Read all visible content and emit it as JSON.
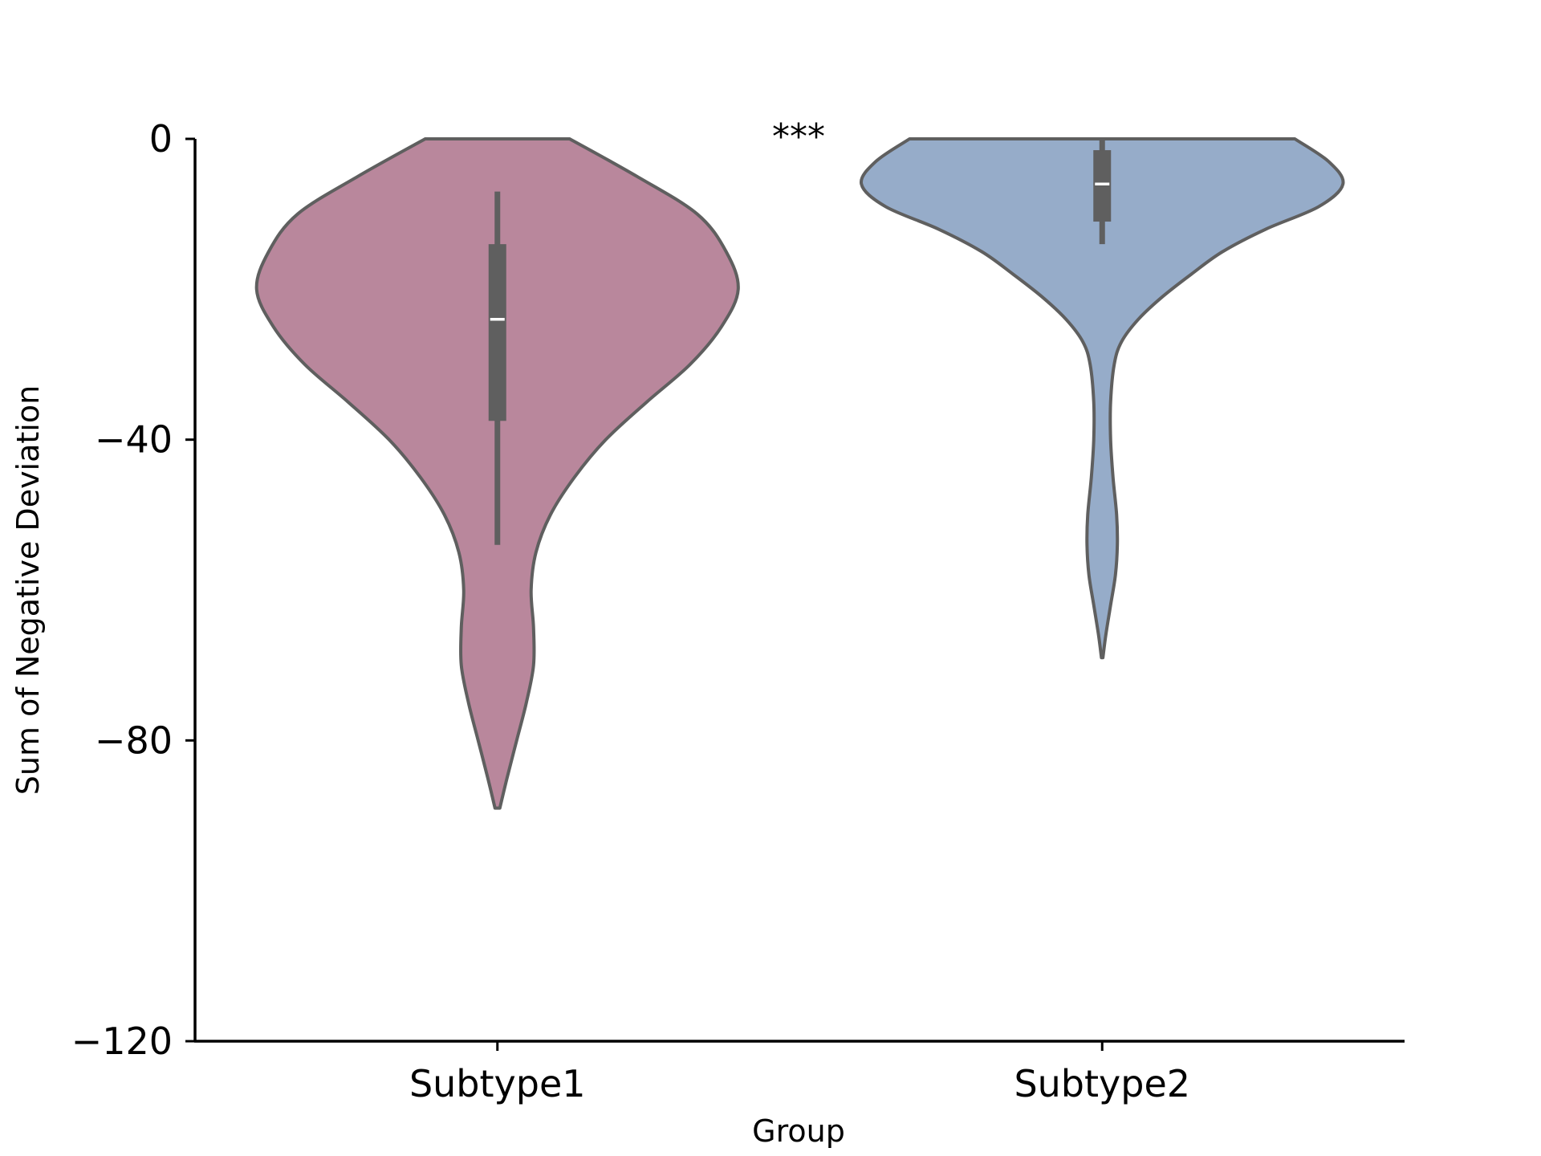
{
  "chart_data": {
    "type": "violin",
    "title": "",
    "xlabel": "Group",
    "ylabel": "Sum of Negative Deviation",
    "ylim": [
      -120,
      0
    ],
    "yticks": [
      0,
      -40,
      -80,
      -120
    ],
    "ytick_labels": [
      "0",
      "−40",
      "−80",
      "−120"
    ],
    "grid": false,
    "legend": "none",
    "annotation": "***",
    "categories": [
      "Subtype1",
      "Subtype2"
    ],
    "series": [
      {
        "category": "Subtype1",
        "color": "#b9879c",
        "edge_color": "#5f5f5f",
        "min": -89,
        "whisker_low": -54,
        "q1": -37.5,
        "median": -24,
        "q3": -14,
        "whisker_high": -7,
        "max_shown": 0,
        "density": [
          [
            0,
            0.3
          ],
          [
            -5,
            0.58
          ],
          [
            -10,
            0.83
          ],
          [
            -15,
            0.95
          ],
          [
            -20,
            1.0
          ],
          [
            -25,
            0.93
          ],
          [
            -30,
            0.8
          ],
          [
            -35,
            0.62
          ],
          [
            -40,
            0.45
          ],
          [
            -45,
            0.32
          ],
          [
            -50,
            0.22
          ],
          [
            -55,
            0.16
          ],
          [
            -60,
            0.14
          ],
          [
            -65,
            0.15
          ],
          [
            -70,
            0.15
          ],
          [
            -75,
            0.12
          ],
          [
            -80,
            0.08
          ],
          [
            -85,
            0.04
          ],
          [
            -89,
            0.01
          ]
        ]
      },
      {
        "category": "Subtype2",
        "color": "#96acc9",
        "edge_color": "#5f5f5f",
        "min": -69,
        "whisker_low": -14,
        "q1": -11,
        "median": -6,
        "q3": -1.5,
        "whisker_high": 0,
        "max_shown": 0,
        "density": [
          [
            0,
            0.8
          ],
          [
            -3,
            0.94
          ],
          [
            -6,
            1.0
          ],
          [
            -9,
            0.9
          ],
          [
            -12,
            0.68
          ],
          [
            -15,
            0.5
          ],
          [
            -18,
            0.37
          ],
          [
            -21,
            0.25
          ],
          [
            -24,
            0.15
          ],
          [
            -27,
            0.08
          ],
          [
            -30,
            0.05
          ],
          [
            -35,
            0.035
          ],
          [
            -40,
            0.035
          ],
          [
            -45,
            0.045
          ],
          [
            -50,
            0.06
          ],
          [
            -54,
            0.063
          ],
          [
            -58,
            0.055
          ],
          [
            -62,
            0.035
          ],
          [
            -66,
            0.015
          ],
          [
            -69,
            0.003
          ]
        ]
      }
    ]
  }
}
